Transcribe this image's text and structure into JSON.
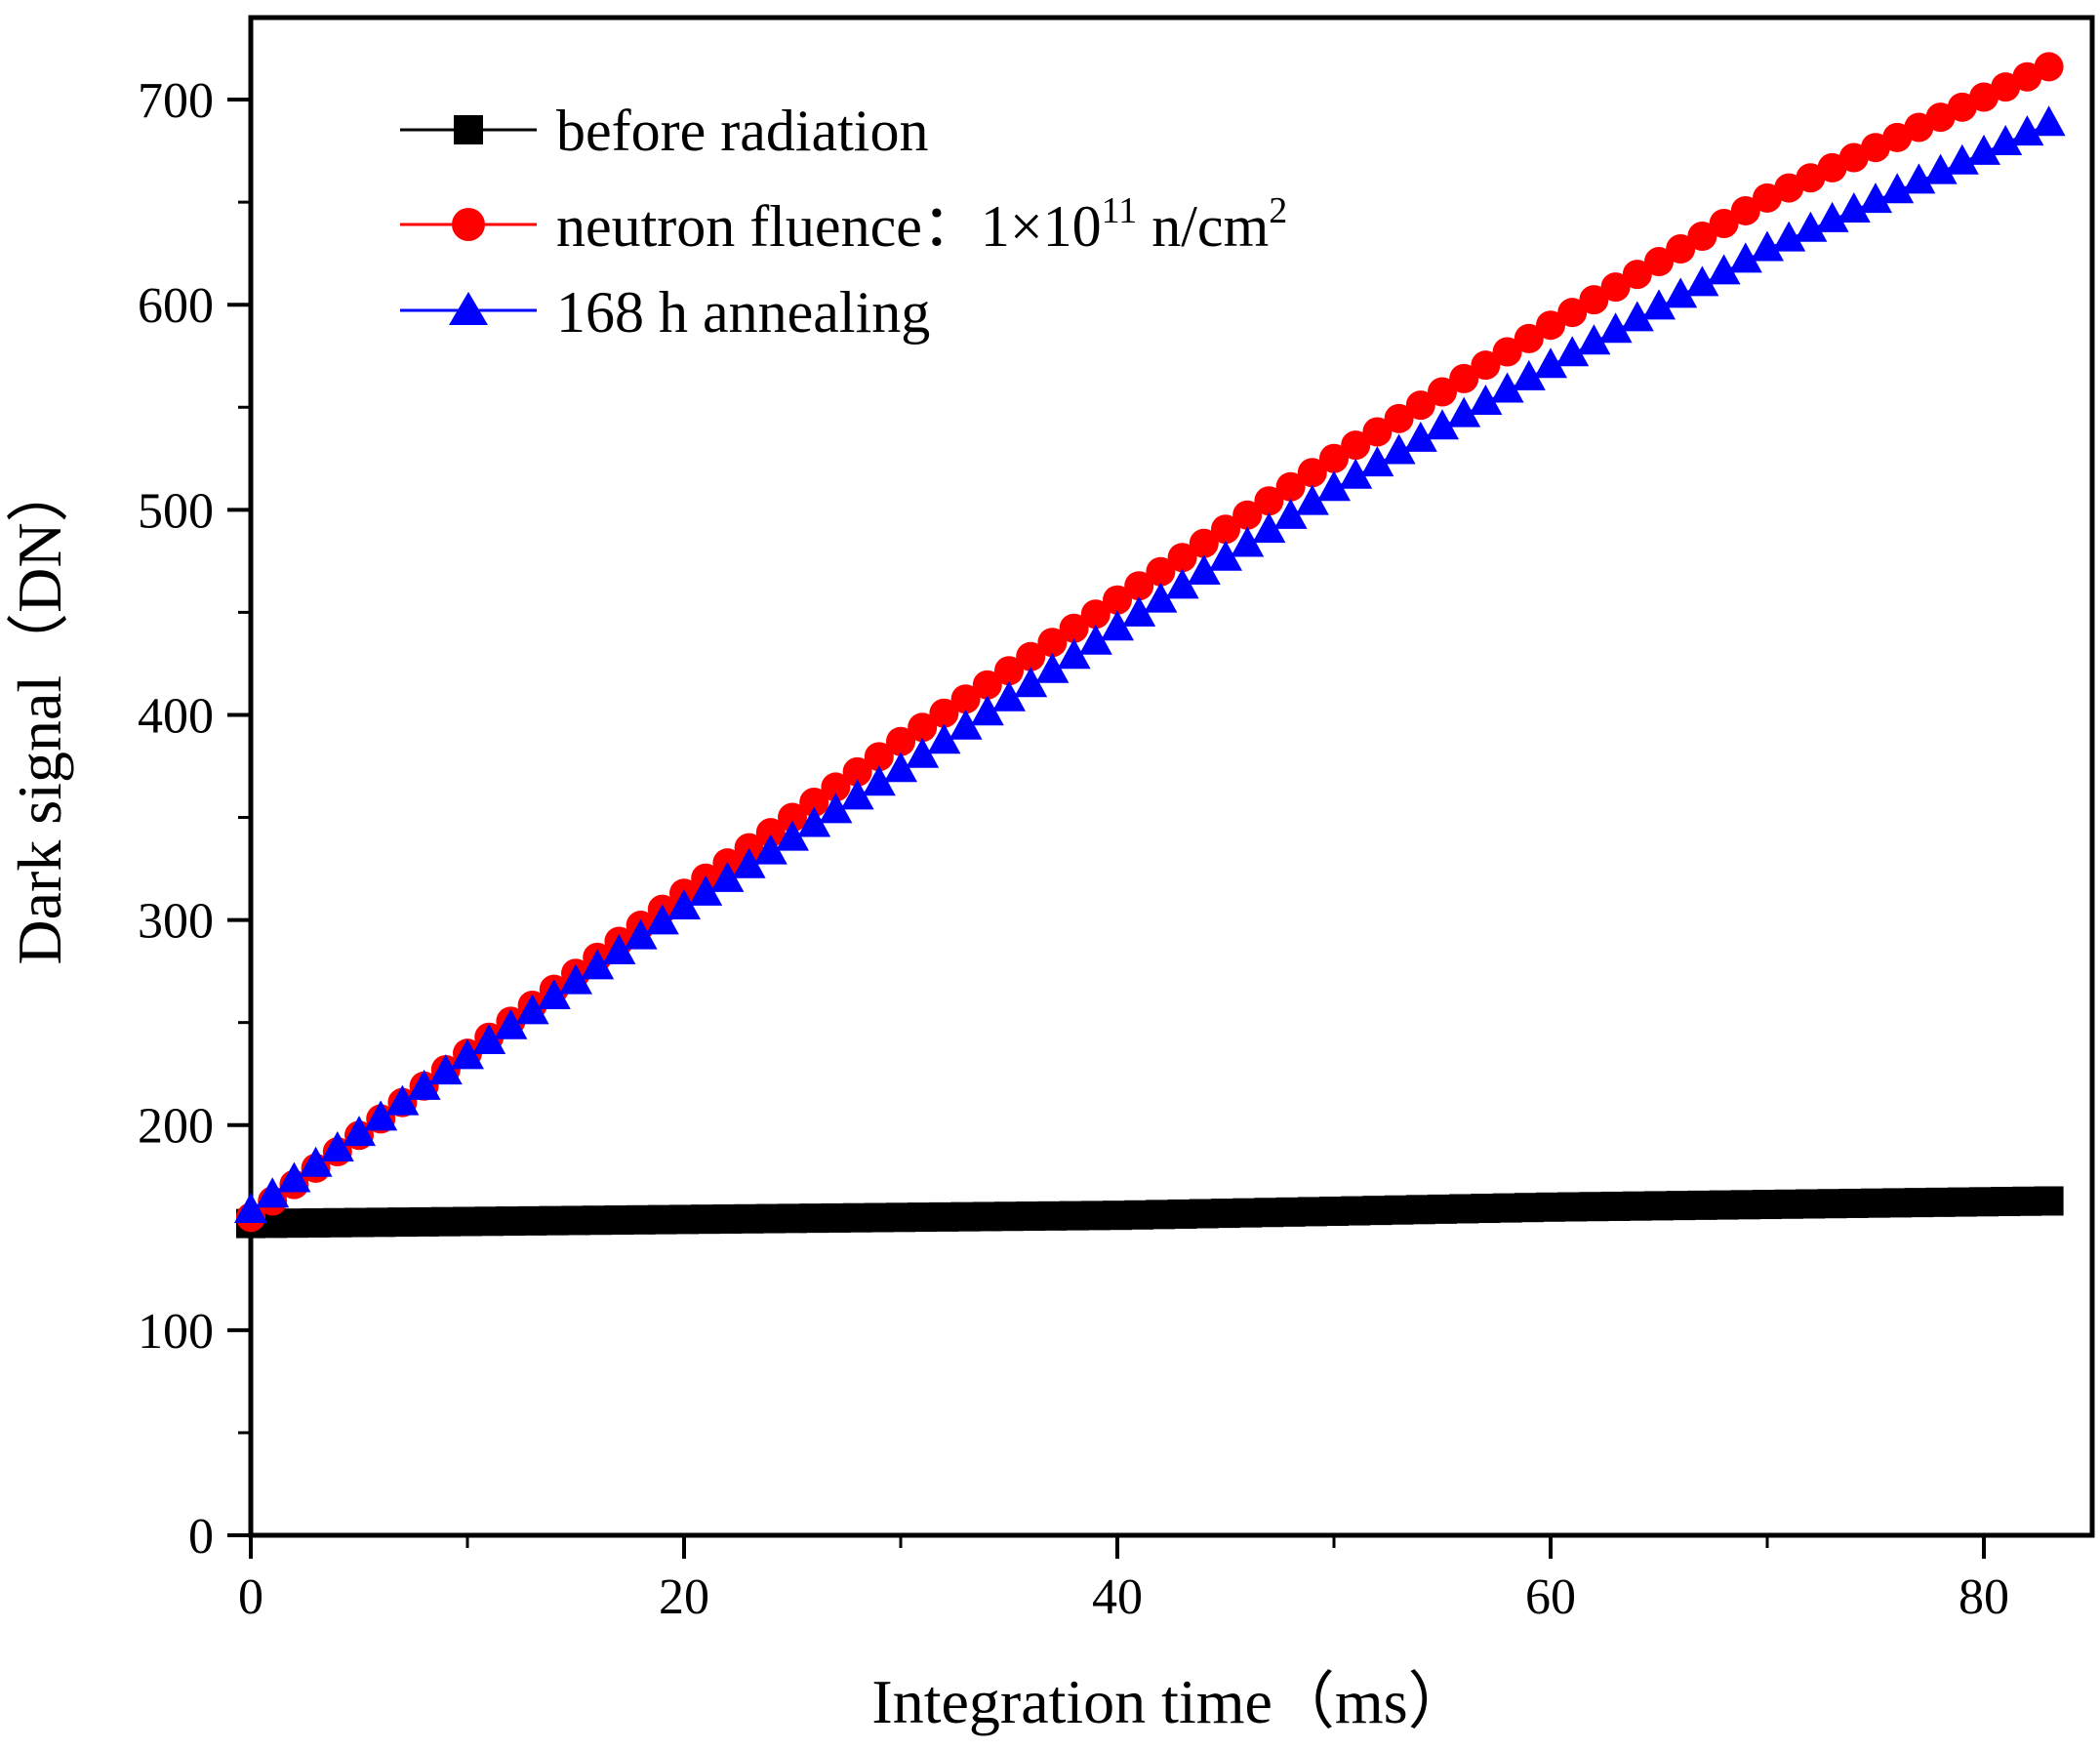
{
  "chart_data": {
    "type": "scatter",
    "xlabel": "Integration time（ms）",
    "ylabel": "Dark signal（DN）",
    "xlim": [
      0,
      85
    ],
    "ylim": [
      0,
      740
    ],
    "xticks": [
      0,
      20,
      40,
      60,
      80
    ],
    "yticks": [
      0,
      100,
      200,
      300,
      400,
      500,
      600,
      700
    ],
    "legend_position": "top-left",
    "grid": false,
    "series": [
      {
        "name": "before radiation",
        "marker": "square",
        "color": "#000000",
        "x_start": 0,
        "x_end": 83,
        "x_step": 1,
        "anchors": [
          [
            0,
            152
          ],
          [
            20,
            154
          ],
          [
            40,
            156
          ],
          [
            60,
            160
          ],
          [
            83,
            163
          ]
        ]
      },
      {
        "name": "neutron fluence：1×10¹¹ n/cm²",
        "legend_parts": {
          "prefix": "neutron fluence：",
          "base": "1×10",
          "exp1": "11",
          "unit": " n/cm",
          "exp2": "2"
        },
        "marker": "circle",
        "color": "#ff0000",
        "x_start": 0,
        "x_end": 83,
        "x_step": 1,
        "anchors": [
          [
            0,
            155
          ],
          [
            10,
            235
          ],
          [
            20,
            313
          ],
          [
            30,
            387
          ],
          [
            40,
            456
          ],
          [
            50,
            525
          ],
          [
            60,
            590
          ],
          [
            70,
            652
          ],
          [
            83,
            716
          ]
        ]
      },
      {
        "name": "168 h annealing",
        "marker": "triangle",
        "color": "#0000ff",
        "x_start": 0,
        "x_end": 83,
        "x_step": 1,
        "anchors": [
          [
            0,
            158
          ],
          [
            10,
            233
          ],
          [
            20,
            306
          ],
          [
            30,
            373
          ],
          [
            40,
            442
          ],
          [
            50,
            510
          ],
          [
            60,
            570
          ],
          [
            70,
            627
          ],
          [
            83,
            688
          ]
        ]
      }
    ]
  }
}
